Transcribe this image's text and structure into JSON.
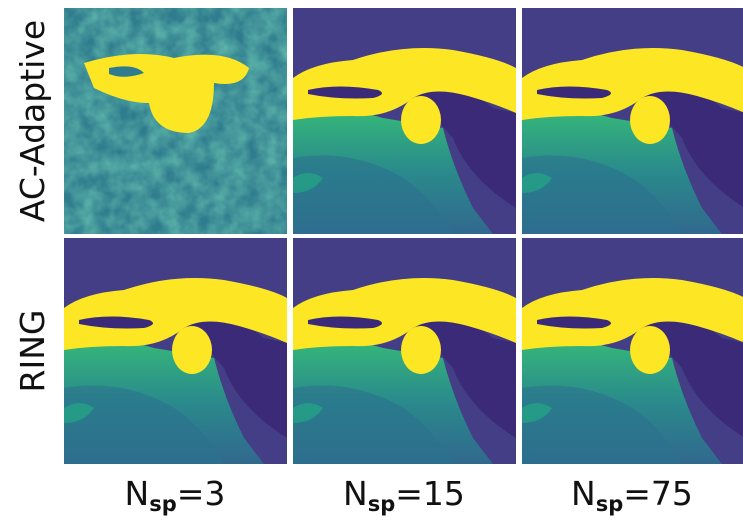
{
  "rows": [
    "AC-Adaptive",
    "RING"
  ],
  "columns": [
    {
      "main": "N",
      "sub": "sp",
      "rest": "=3"
    },
    {
      "main": "N",
      "sub": "sp",
      "rest": "=15"
    },
    {
      "main": "N",
      "sub": "sp",
      "rest": "=75"
    }
  ]
}
